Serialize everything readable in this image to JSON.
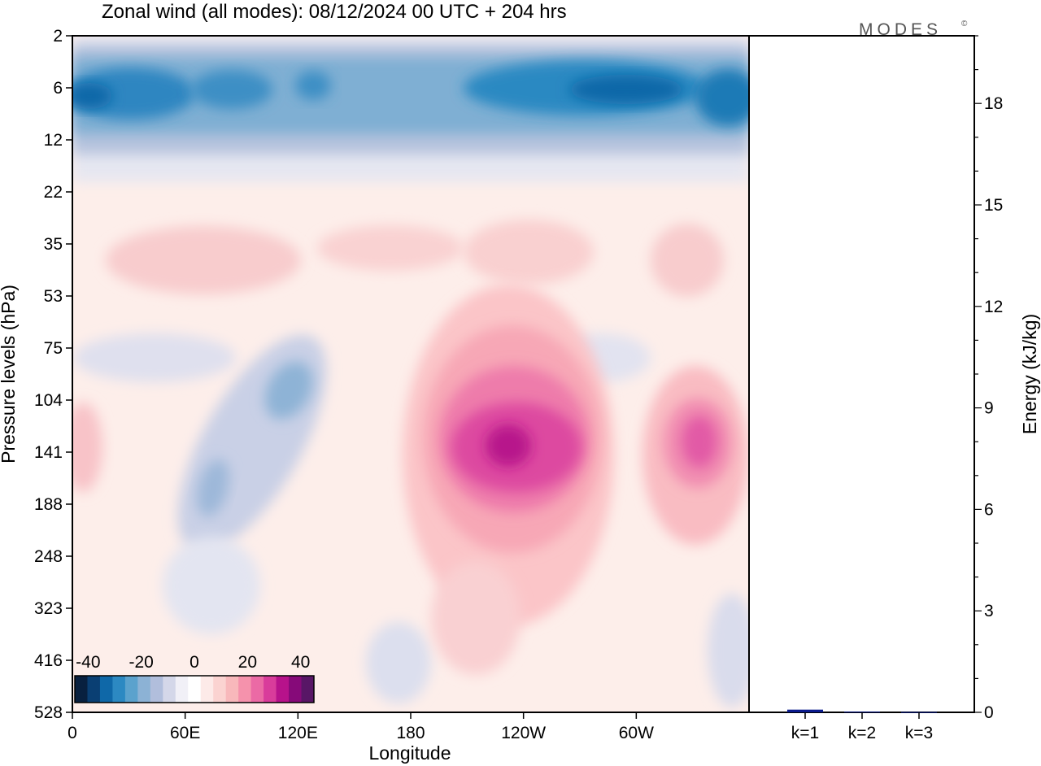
{
  "title": "Zonal wind (all modes):  08/12/2024  00 UTC  + 204 hrs",
  "logo": "MODES",
  "logo_mark": "©",
  "chart_data": [
    {
      "type": "heatmap",
      "title": "Zonal wind (all modes):  08/12/2024  00 UTC  + 204 hrs",
      "xlabel": "Longitude",
      "ylabel": "Pressure levels (hPa)",
      "x_ticks": [
        "0",
        "60E",
        "120E",
        "180",
        "120W",
        "60W"
      ],
      "x_tick_deg": [
        0,
        60,
        120,
        180,
        240,
        300
      ],
      "xlim": [
        0,
        360
      ],
      "y_ticks": [
        "2",
        "6",
        "12",
        "22",
        "35",
        "53",
        "75",
        "104",
        "141",
        "188",
        "248",
        "323",
        "416",
        "528"
      ],
      "y_order": "top-to-bottom",
      "colorbar": {
        "tick_labels": [
          "-40",
          "-20",
          "0",
          "20",
          "40"
        ],
        "levels": [
          -45,
          -40,
          -35,
          -30,
          -25,
          -20,
          -15,
          -10,
          -5,
          0,
          5,
          10,
          15,
          20,
          25,
          30,
          35,
          40,
          45
        ],
        "colors": [
          "#08203f",
          "#0a3f73",
          "#0f68a8",
          "#2c89c2",
          "#5ba2cd",
          "#8cb2d5",
          "#b1bedc",
          "#d4d7e9",
          "#f1f0f7",
          "#ffffff",
          "#fdeae8",
          "#fbd3d1",
          "#f8b8bb",
          "#f592ac",
          "#eb6aa5",
          "#d93c9b",
          "#b7128b",
          "#860a79",
          "#581666"
        ],
        "range": [
          -45,
          45
        ]
      },
      "features": [
        {
          "lon": 15,
          "level": "6",
          "value": -32
        },
        {
          "lon": 75,
          "level": "6",
          "value": -30
        },
        {
          "lon": 115,
          "level": "6",
          "value": -28
        },
        {
          "lon": 270,
          "level": "6",
          "value": -36
        },
        {
          "lon": 340,
          "level": "6",
          "value": -32
        },
        {
          "lon": 70,
          "level": "35",
          "value": 9
        },
        {
          "lon": 150,
          "level": "35",
          "value": 6
        },
        {
          "lon": 240,
          "level": "53",
          "value": 10
        },
        {
          "lon": 120,
          "level": "104",
          "value": -20
        },
        {
          "lon": 75,
          "level": "188",
          "value": -20
        },
        {
          "lon": 230,
          "level": "141",
          "value": 37
        },
        {
          "lon": 337,
          "level": "141",
          "value": 26
        },
        {
          "lon": 5,
          "level": "141",
          "value": 10
        },
        {
          "lon": 175,
          "level": "416",
          "value": -9
        },
        {
          "lon": 350,
          "level": "416",
          "value": -8
        }
      ]
    },
    {
      "type": "bar",
      "ylabel": "Energy (kJ/kg)",
      "categories": [
        "k=1",
        "k=2",
        "k=3"
      ],
      "values": [
        0.08,
        0.02,
        0.01
      ],
      "ylim": [
        0,
        20
      ],
      "y_ticks": [
        "0",
        "3",
        "6",
        "9",
        "12",
        "15",
        "18"
      ],
      "y_tick_values": [
        0,
        3,
        6,
        9,
        12,
        15,
        18
      ],
      "minor_step": 1,
      "bar_color": "#0a1a8c"
    }
  ]
}
